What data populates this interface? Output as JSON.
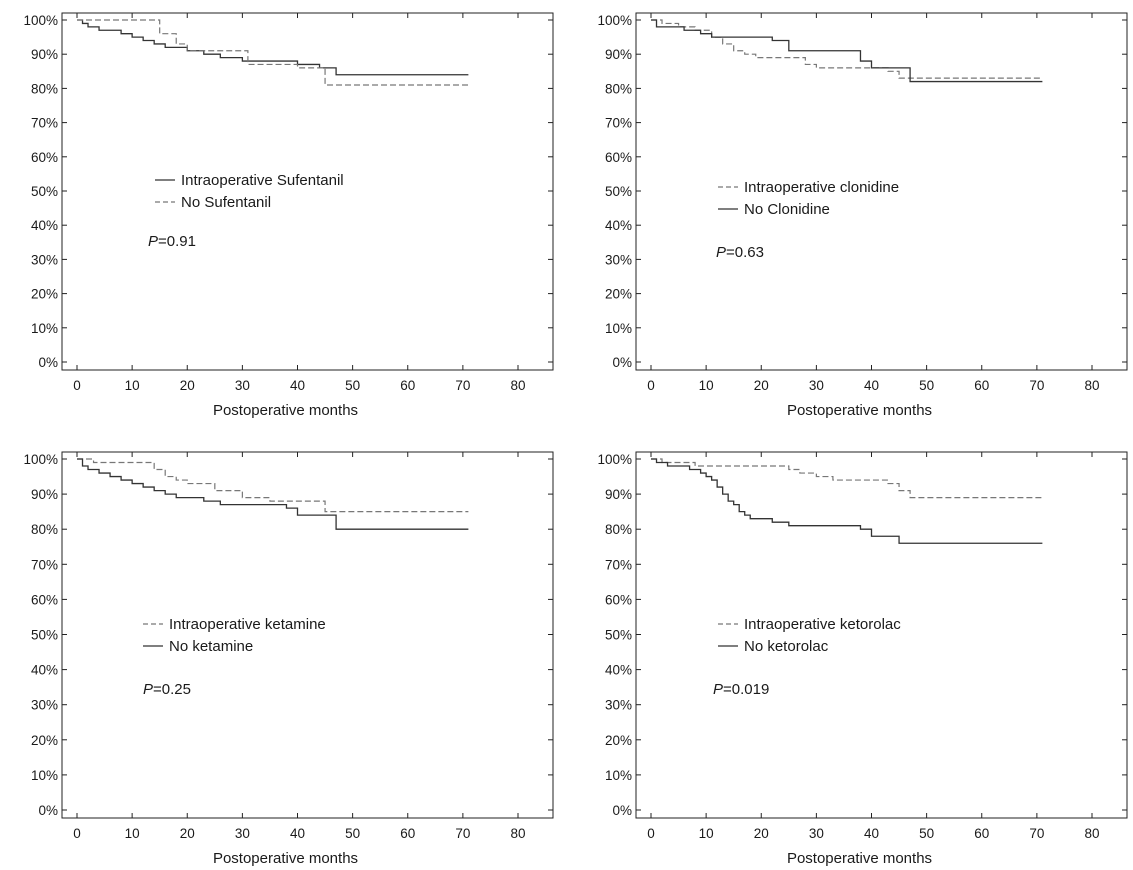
{
  "chart_data": [
    {
      "type": "line",
      "xlabel": "Postoperative months",
      "ylabel": "",
      "xlim": [
        0,
        80
      ],
      "ylim": [
        0,
        100
      ],
      "x_ticks": [
        0,
        10,
        20,
        30,
        40,
        50,
        60,
        70,
        80
      ],
      "y_ticks": [
        "0%",
        "10%",
        "20%",
        "30%",
        "40%",
        "50%",
        "60%",
        "70%",
        "80%",
        "90%",
        "100%"
      ],
      "grid": false,
      "legend_position": "middle-left",
      "annotation": {
        "italic": "P",
        "text": "=0.91"
      },
      "series": [
        {
          "name": "Intraoperative Sufentanil",
          "style": "solid",
          "color": "#333333",
          "x": [
            0,
            1,
            2,
            4,
            6,
            8,
            10,
            12,
            14,
            16,
            18,
            20,
            23,
            26,
            30,
            35,
            40,
            44,
            47,
            71
          ],
          "y": [
            100,
            99,
            98,
            97,
            97,
            96,
            95,
            94,
            93,
            92,
            92,
            91,
            90,
            89,
            88,
            88,
            87,
            86,
            84,
            84
          ]
        },
        {
          "name": "No Sufentanil",
          "style": "dashed",
          "color": "#777777",
          "x": [
            0,
            13,
            15,
            18,
            20,
            25,
            31,
            35,
            40,
            43,
            45,
            71
          ],
          "y": [
            100,
            100,
            96,
            93,
            91,
            91,
            87,
            87,
            86,
            86,
            81,
            81
          ]
        }
      ]
    },
    {
      "type": "line",
      "xlabel": "Postoperative months",
      "ylabel": "",
      "xlim": [
        0,
        80
      ],
      "ylim": [
        0,
        100
      ],
      "x_ticks": [
        0,
        10,
        20,
        30,
        40,
        50,
        60,
        70,
        80
      ],
      "y_ticks": [
        "0%",
        "10%",
        "20%",
        "30%",
        "40%",
        "50%",
        "60%",
        "70%",
        "80%",
        "90%",
        "100%"
      ],
      "grid": false,
      "legend_position": "middle-left",
      "annotation": {
        "italic": "P",
        "text": "=0.63"
      },
      "series": [
        {
          "name": "Intraoperative clonidine",
          "style": "dashed",
          "color": "#777777",
          "x": [
            0,
            2,
            5,
            8,
            11,
            13,
            15,
            17,
            19,
            25,
            28,
            30,
            35,
            40,
            43,
            45,
            71
          ],
          "y": [
            100,
            99,
            98,
            97,
            95,
            93,
            91,
            90,
            89,
            89,
            87,
            86,
            86,
            86,
            85,
            83,
            83
          ]
        },
        {
          "name": "No Clonidine",
          "style": "solid",
          "color": "#333333",
          "x": [
            0,
            1,
            3,
            6,
            9,
            11,
            14,
            18,
            22,
            25,
            30,
            36,
            38,
            40,
            47,
            71
          ],
          "y": [
            100,
            98,
            98,
            97,
            96,
            95,
            95,
            95,
            94,
            91,
            91,
            91,
            88,
            86,
            82,
            82
          ]
        }
      ]
    },
    {
      "type": "line",
      "xlabel": "Postoperative months",
      "ylabel": "",
      "xlim": [
        0,
        80
      ],
      "ylim": [
        0,
        100
      ],
      "x_ticks": [
        0,
        10,
        20,
        30,
        40,
        50,
        60,
        70,
        80
      ],
      "y_ticks": [
        "0%",
        "10%",
        "20%",
        "30%",
        "40%",
        "50%",
        "60%",
        "70%",
        "80%",
        "90%",
        "100%"
      ],
      "grid": false,
      "legend_position": "middle-left",
      "annotation": {
        "italic": "P",
        "text": "=0.25"
      },
      "series": [
        {
          "name": "Intraoperative ketamine",
          "style": "dashed",
          "color": "#777777",
          "x": [
            0,
            1,
            3,
            12,
            14,
            16,
            18,
            20,
            25,
            30,
            35,
            40,
            45,
            71
          ],
          "y": [
            100,
            100,
            99,
            99,
            97,
            95,
            94,
            93,
            91,
            89,
            88,
            88,
            85,
            85
          ]
        },
        {
          "name": "No ketamine",
          "style": "solid",
          "color": "#333333",
          "x": [
            0,
            1,
            2,
            4,
            6,
            8,
            10,
            12,
            14,
            16,
            18,
            20,
            23,
            26,
            30,
            35,
            38,
            40,
            47,
            71
          ],
          "y": [
            100,
            98,
            97,
            96,
            95,
            94,
            93,
            92,
            91,
            90,
            89,
            89,
            88,
            87,
            87,
            87,
            86,
            84,
            80,
            80
          ]
        }
      ]
    },
    {
      "type": "line",
      "xlabel": "Postoperative months",
      "ylabel": "",
      "xlim": [
        0,
        80
      ],
      "ylim": [
        0,
        100
      ],
      "x_ticks": [
        0,
        10,
        20,
        30,
        40,
        50,
        60,
        70,
        80
      ],
      "y_ticks": [
        "0%",
        "10%",
        "20%",
        "30%",
        "40%",
        "50%",
        "60%",
        "70%",
        "80%",
        "90%",
        "100%"
      ],
      "grid": false,
      "legend_position": "middle-left",
      "annotation": {
        "italic": "P",
        "text": "=0.019"
      },
      "series": [
        {
          "name": "Intraoperative ketorolac",
          "style": "dashed",
          "color": "#777777",
          "x": [
            0,
            2,
            5,
            8,
            12,
            16,
            20,
            25,
            27,
            30,
            33,
            38,
            43,
            45,
            47,
            71
          ],
          "y": [
            100,
            99,
            99,
            98,
            98,
            98,
            98,
            97,
            96,
            95,
            94,
            94,
            93,
            91,
            89,
            89
          ]
        },
        {
          "name": "No ketorolac",
          "style": "solid",
          "color": "#333333",
          "x": [
            0,
            1,
            3,
            5,
            7,
            9,
            10,
            11,
            12,
            13,
            14,
            15,
            16,
            17,
            18,
            20,
            22,
            25,
            30,
            35,
            38,
            40,
            45,
            71
          ],
          "y": [
            100,
            99,
            98,
            98,
            97,
            96,
            95,
            94,
            92,
            90,
            88,
            87,
            85,
            84,
            83,
            83,
            82,
            81,
            81,
            81,
            80,
            78,
            76,
            76
          ]
        }
      ]
    }
  ]
}
